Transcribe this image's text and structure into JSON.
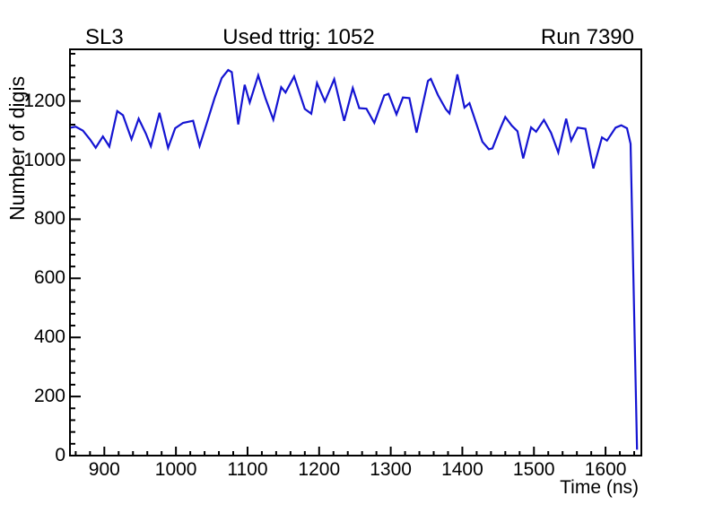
{
  "header": {
    "left": "SL3",
    "center": "Used ttrig: 1052",
    "right": "Run 7390"
  },
  "chart_data": {
    "type": "line",
    "title": "Used ttrig: 1052",
    "xlabel": "Time (ns)",
    "ylabel": "Number of digis",
    "xlim": [
      852,
      1650
    ],
    "ylim": [
      0,
      1375
    ],
    "xticks": [
      900,
      1000,
      1100,
      1200,
      1300,
      1400,
      1500,
      1600
    ],
    "yticks": [
      0,
      200,
      400,
      600,
      800,
      1000,
      1200
    ],
    "x_minor_step": 20,
    "y_minor_step": 40,
    "grid": false,
    "legend": "none",
    "line_color": "#1414d2",
    "frame_color": "#000000",
    "background_color": "#ffffff",
    "series": [
      {
        "name": "number-of-digis-vs-time",
        "points": [
          [
            853,
            1110
          ],
          [
            860,
            1113
          ],
          [
            870,
            1100
          ],
          [
            880,
            1070
          ],
          [
            888,
            1042
          ],
          [
            898,
            1080
          ],
          [
            907,
            1046
          ],
          [
            918,
            1166
          ],
          [
            926,
            1152
          ],
          [
            938,
            1071
          ],
          [
            948,
            1140
          ],
          [
            958,
            1090
          ],
          [
            965,
            1047
          ],
          [
            977,
            1160
          ],
          [
            989,
            1041
          ],
          [
            999,
            1108
          ],
          [
            1010,
            1126
          ],
          [
            1024,
            1133
          ],
          [
            1033,
            1048
          ],
          [
            1043,
            1125
          ],
          [
            1054,
            1210
          ],
          [
            1064,
            1278
          ],
          [
            1073,
            1305
          ],
          [
            1078,
            1298
          ],
          [
            1087,
            1121
          ],
          [
            1096,
            1255
          ],
          [
            1103,
            1195
          ],
          [
            1115,
            1287
          ],
          [
            1125,
            1210
          ],
          [
            1136,
            1137
          ],
          [
            1147,
            1247
          ],
          [
            1153,
            1229
          ],
          [
            1165,
            1283
          ],
          [
            1180,
            1173
          ],
          [
            1189,
            1157
          ],
          [
            1197,
            1261
          ],
          [
            1208,
            1199
          ],
          [
            1221,
            1274
          ],
          [
            1235,
            1133
          ],
          [
            1247,
            1244
          ],
          [
            1256,
            1176
          ],
          [
            1266,
            1174
          ],
          [
            1277,
            1126
          ],
          [
            1291,
            1219
          ],
          [
            1297,
            1224
          ],
          [
            1308,
            1155
          ],
          [
            1317,
            1212
          ],
          [
            1326,
            1210
          ],
          [
            1336,
            1093
          ],
          [
            1352,
            1268
          ],
          [
            1356,
            1275
          ],
          [
            1366,
            1220
          ],
          [
            1377,
            1172
          ],
          [
            1382,
            1158
          ],
          [
            1393,
            1290
          ],
          [
            1403,
            1178
          ],
          [
            1410,
            1193
          ],
          [
            1428,
            1062
          ],
          [
            1437,
            1037
          ],
          [
            1442,
            1040
          ],
          [
            1453,
            1107
          ],
          [
            1460,
            1146
          ],
          [
            1469,
            1117
          ],
          [
            1477,
            1098
          ],
          [
            1485,
            1006
          ],
          [
            1496,
            1111
          ],
          [
            1503,
            1096
          ],
          [
            1514,
            1136
          ],
          [
            1524,
            1092
          ],
          [
            1534,
            1026
          ],
          [
            1545,
            1140
          ],
          [
            1552,
            1066
          ],
          [
            1561,
            1110
          ],
          [
            1572,
            1106
          ],
          [
            1583,
            972
          ],
          [
            1595,
            1077
          ],
          [
            1602,
            1066
          ],
          [
            1614,
            1110
          ],
          [
            1622,
            1118
          ],
          [
            1630,
            1108
          ],
          [
            1635,
            1055
          ],
          [
            1644,
            20
          ]
        ]
      }
    ]
  }
}
